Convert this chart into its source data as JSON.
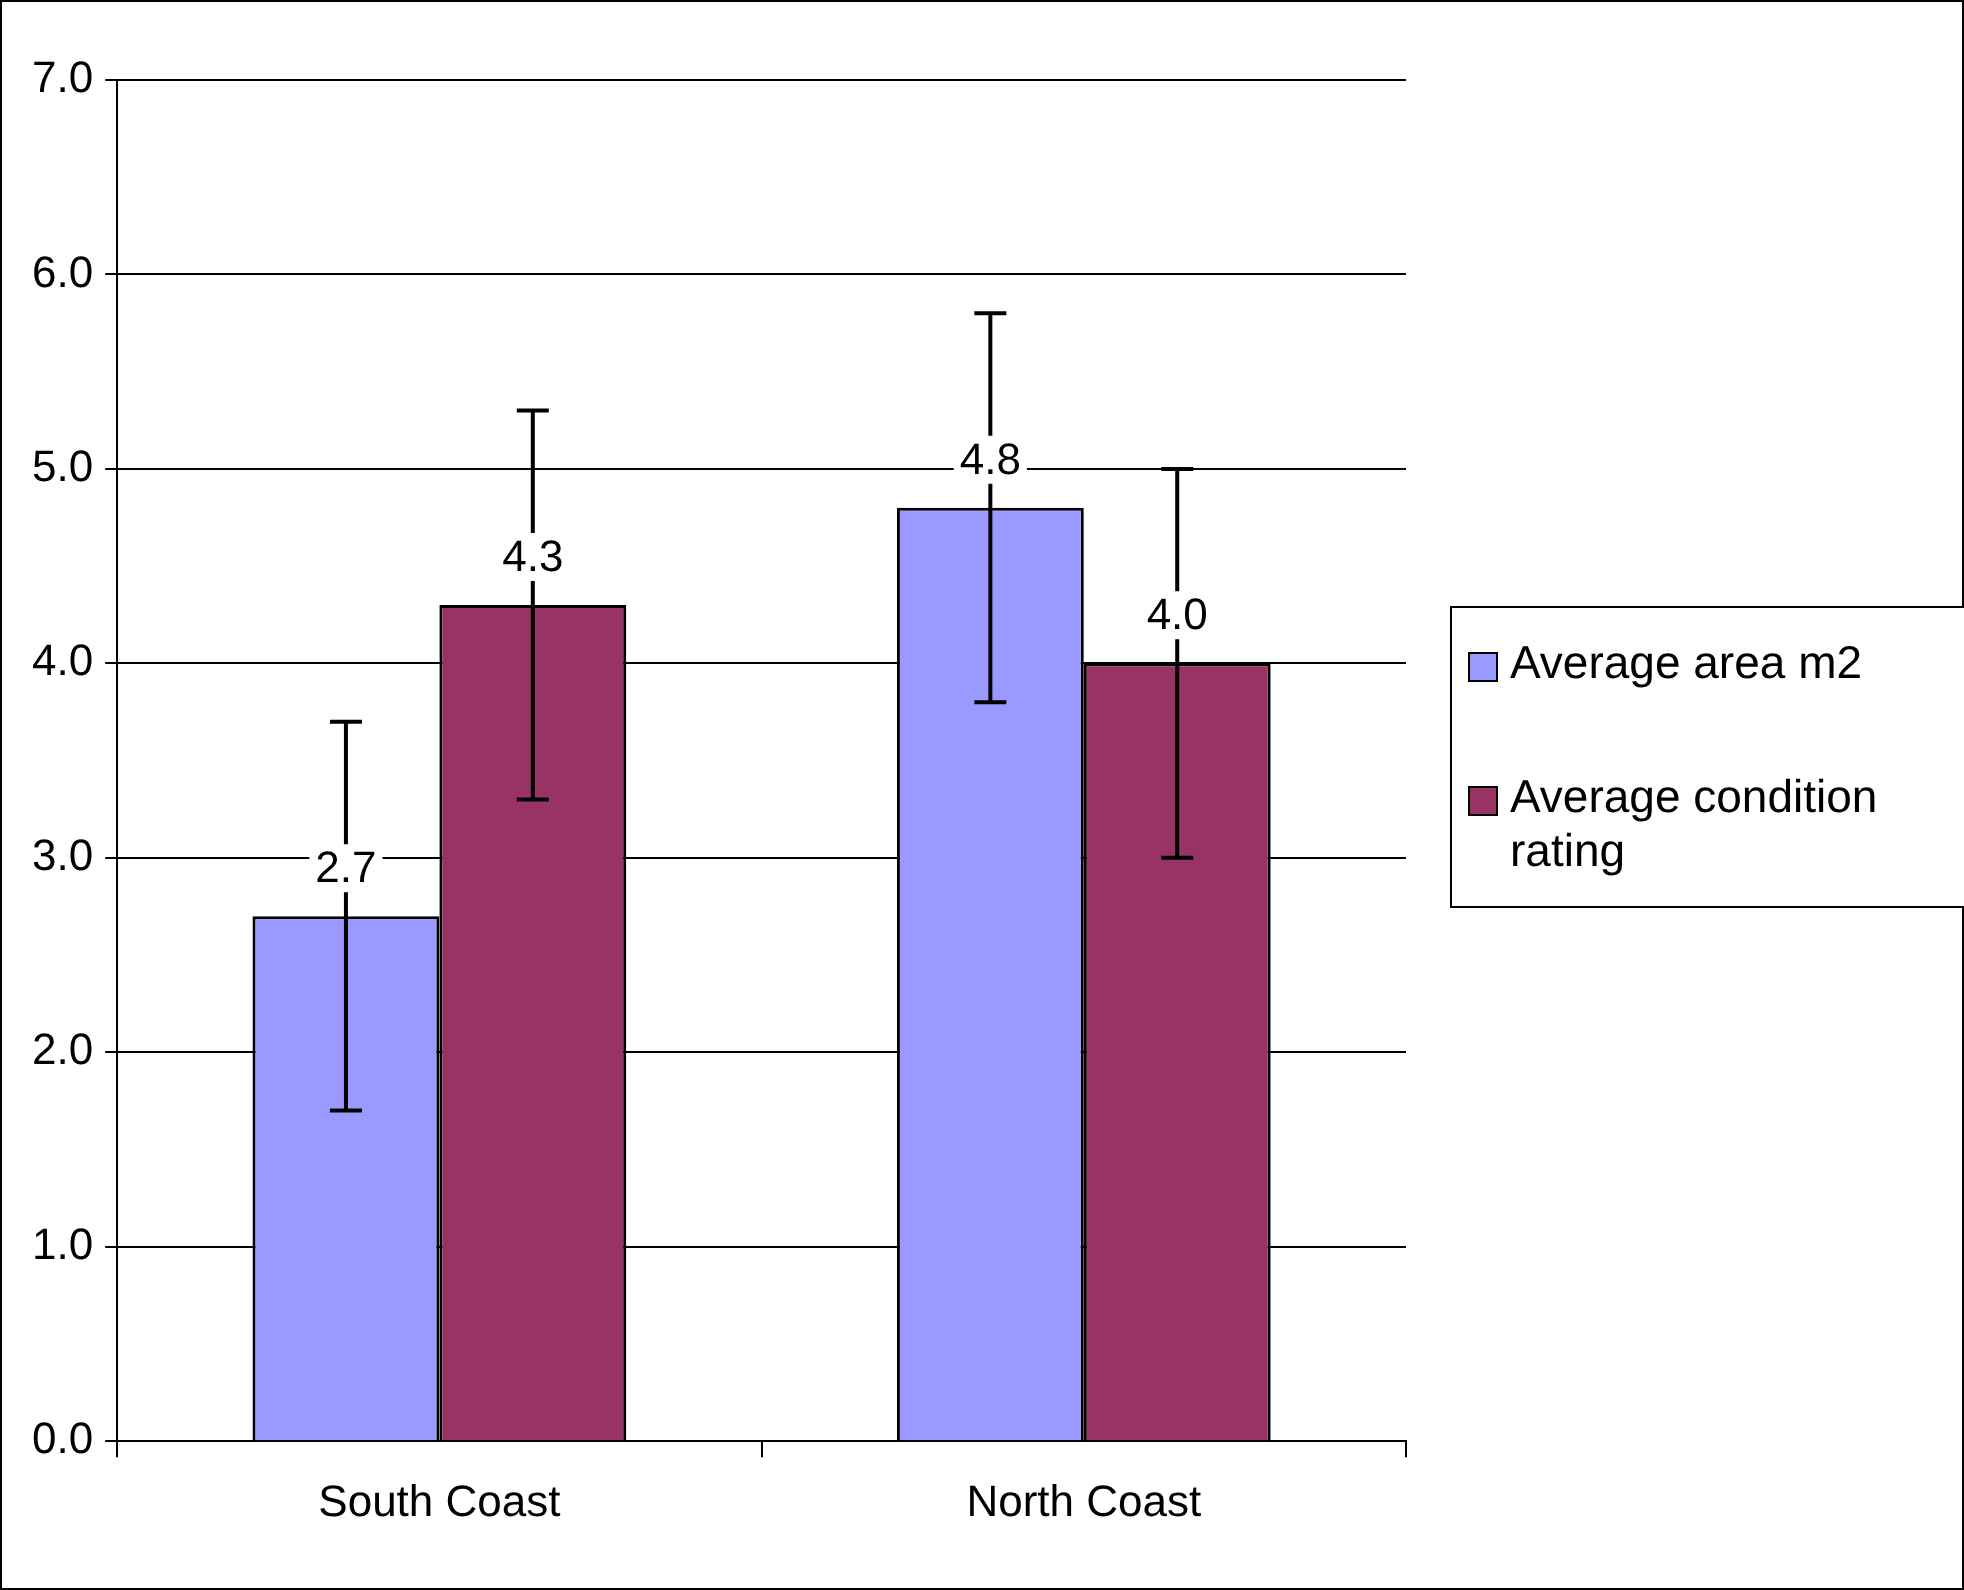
{
  "chart_data": {
    "type": "bar",
    "categories": [
      "South Coast",
      "North Coast"
    ],
    "series": [
      {
        "name": "Average area m2",
        "color": "#9999ff",
        "values": [
          2.7,
          4.8
        ],
        "value_labels": [
          "2.7",
          "4.8"
        ],
        "errors": [
          1,
          1
        ]
      },
      {
        "name": "Average condition rating",
        "color": "#993366",
        "values": [
          4.3,
          4.0
        ],
        "value_labels": [
          "4.3",
          "4.0"
        ],
        "errors": [
          1,
          1
        ]
      }
    ],
    "ylim": [
      0,
      7
    ],
    "yticks": [
      {
        "value": 0,
        "label": "0.0"
      },
      {
        "value": 1,
        "label": "1.0"
      },
      {
        "value": 2,
        "label": "2.0"
      },
      {
        "value": 3,
        "label": "3.0"
      },
      {
        "value": 4,
        "label": "4.0"
      },
      {
        "value": 5,
        "label": "5.0"
      },
      {
        "value": 6,
        "label": "6.0"
      },
      {
        "value": 7,
        "label": "7.0"
      }
    ],
    "grid": "y",
    "legend": "right"
  }
}
